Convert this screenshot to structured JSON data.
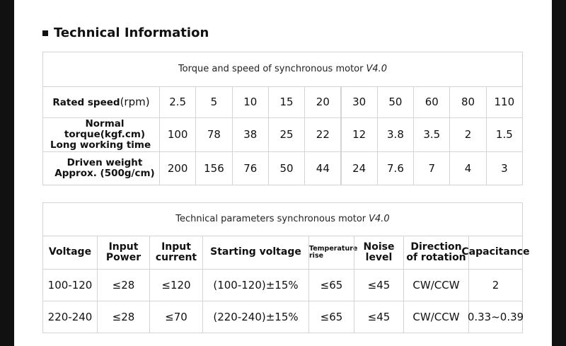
{
  "heading": "Technical Information",
  "table1": {
    "title": "Torque and speed of synchronous motor",
    "version": "V4.0",
    "rows": [
      {
        "label": [
          "Rated speed",
          "(rpm)"
        ],
        "cells": [
          "2.5",
          "5",
          "10",
          "15",
          "20",
          "30",
          "50",
          "60",
          "80",
          "110"
        ]
      },
      {
        "label": [
          "Normal torque(kgf.cm)",
          "Long working time"
        ],
        "cells": [
          "100",
          "78",
          "38",
          "25",
          "22",
          "12",
          "3.8",
          "3.5",
          "2",
          "1.5"
        ]
      },
      {
        "label": [
          "Driven weight",
          "Approx. (500g/cm)"
        ],
        "cells": [
          "200",
          "156",
          "76",
          "50",
          "44",
          "24",
          "7.6",
          "7",
          "4",
          "3"
        ]
      }
    ]
  },
  "table2": {
    "title": "Technical parameters synchronous motor",
    "version": "V4.0",
    "header": [
      [
        "Voltage"
      ],
      [
        "Input",
        "Power"
      ],
      [
        "Input",
        "current"
      ],
      [
        "Starting voltage"
      ],
      [
        "Temperature",
        "rise"
      ],
      [
        "Noise",
        "level"
      ],
      [
        "Direction",
        "of rotation"
      ],
      [
        "Capacitance"
      ]
    ],
    "rows": [
      [
        "100-120",
        "≤28",
        "≤120",
        "(100-120)±15%",
        "≤65",
        "≤45",
        "CW/CCW",
        "2"
      ],
      [
        "220-240",
        "≤28",
        "≤70",
        "(220-240)±15%",
        "≤65",
        "≤45",
        "CW/CCW",
        "0.33~0.39"
      ]
    ]
  }
}
